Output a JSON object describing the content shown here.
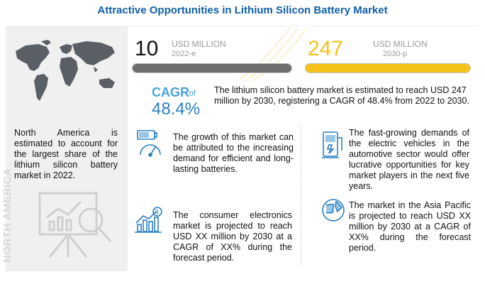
{
  "title": "Attractive Opportunities in Lithium Silicon Battery Market",
  "left_panel": {
    "description": "North America is estimated to account for the largest share of the lithium silicon battery market in 2022.",
    "vertical_label": "NORTH AMERICA",
    "map_icon": "world-map-icon",
    "presentation_icon": "presentation-board-icon"
  },
  "market_2022": {
    "value": "10",
    "unit": "USD MILLION",
    "year": "2022-e",
    "bar_fill_fraction": 0.04,
    "bar_color": "#6e6e6e"
  },
  "market_2030": {
    "value": "247",
    "unit": "USD MILLION",
    "year": "2030-p",
    "bar_fill_fraction": 1.0,
    "bar_color": "#f6c21a"
  },
  "cagr": {
    "label": "CAGR",
    "of": "of",
    "value": "48.4%",
    "description": "The lithium silicon battery market is estimated to reach USD 247 million by 2030, registering a CAGR of 48.4% from 2022 to 2030."
  },
  "insights": [
    {
      "icon": "battery-gauge-icon",
      "text": "The growth of this market can be attributed to the increasing demand for efficient and long-lasting batteries."
    },
    {
      "icon": "electric-vehicle-icon",
      "text": "The fast-growing demands of the electric vehicles in the automotive sector would offer lucrative opportunities for key market players in the next five years."
    },
    {
      "icon": "growth-chart-icon",
      "text": "The consumer electronics market is projected to reach USD XX million by 2030 at a CAGR of XX% during the forecast period."
    },
    {
      "icon": "globe-icon",
      "text": "The market in the Asia Pacific is projected to reach USD XX million by 2030 at a CAGR of XX% during the forecast period."
    }
  ],
  "colors": {
    "title": "#0f5fa8",
    "accent_blue": "#2a7fc1",
    "accent_yellow": "#f6c21a"
  }
}
